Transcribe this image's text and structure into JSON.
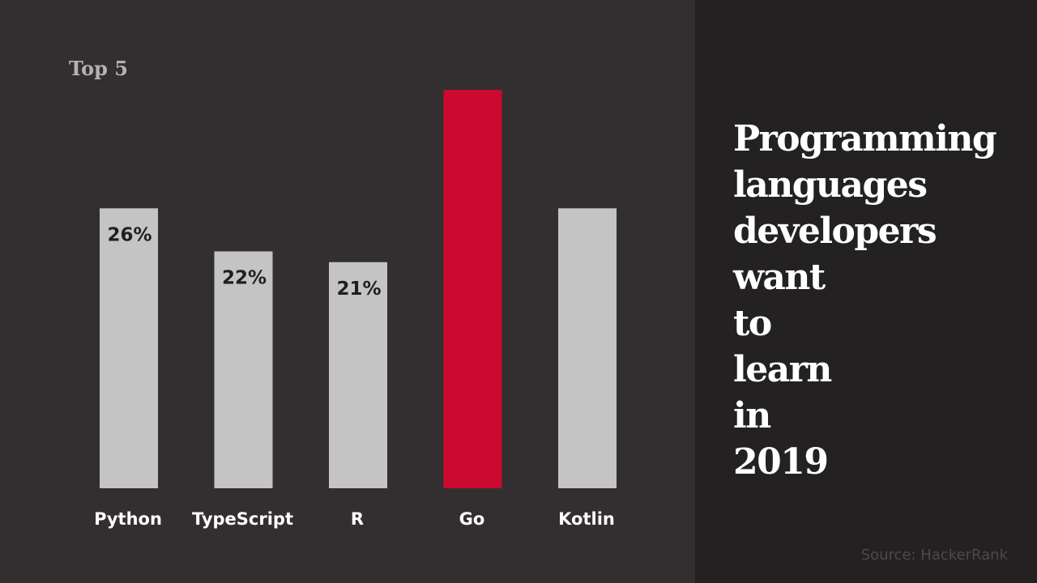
{
  "subtitle": "Top 5",
  "title": "Programming\nlanguages\ndevelopers\nwant\nto\nlearn\nin\n2019",
  "source": "Source:  HackerRank",
  "colors": {
    "bar": "#c4c4c4",
    "highlight": "#cc0a2f",
    "label_on_bar": "#1f1f1f",
    "category_text": "#ffffff"
  },
  "chart_data": {
    "type": "bar",
    "categories": [
      "Python",
      "TypeScript",
      "R",
      "Go",
      "Kotlin"
    ],
    "values": [
      26,
      22,
      21,
      37,
      26
    ],
    "data_labels": [
      "26%",
      "22%",
      "21%",
      "",
      ""
    ],
    "highlight_category": "Go",
    "ylim": [
      0,
      40
    ],
    "grid": false
  }
}
